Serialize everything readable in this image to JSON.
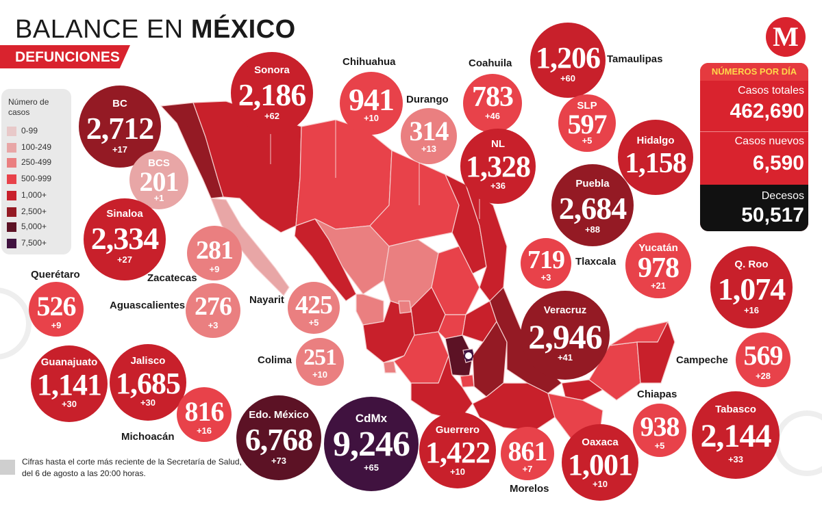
{
  "header": {
    "title_regular": "BALANCE EN",
    "title_bold": "MÉXICO",
    "subtitle": "DEFUNCIONES",
    "logo_letter": "M"
  },
  "legend": {
    "title": "Número de casos",
    "items": [
      {
        "label": "0-99",
        "color": "#e8c9c9"
      },
      {
        "label": "100-249",
        "color": "#e8a6a6"
      },
      {
        "label": "250-499",
        "color": "#ea7f80"
      },
      {
        "label": "500-999",
        "color": "#e8424a"
      },
      {
        "label": "1,000+",
        "color": "#c8202b"
      },
      {
        "label": "2,500+",
        "color": "#941a24"
      },
      {
        "label": "5,000+",
        "color": "#5c1225"
      },
      {
        "label": "7,500+",
        "color": "#40123f"
      }
    ]
  },
  "stats": {
    "header": "NÚMEROS POR DÍA",
    "total_label": "Casos totales",
    "total_value": "462,690",
    "new_label": "Casos nuevos",
    "new_value": "6,590",
    "deaths_label": "Decesos",
    "deaths_value": "50,517"
  },
  "states": [
    {
      "name": "BC",
      "value": "2,712",
      "delta": "+17",
      "color": "#941a24"
    },
    {
      "name": "Sonora",
      "value": "2,186",
      "delta": "+62",
      "color": "#c8202b"
    },
    {
      "name": "BCS",
      "value": "201",
      "delta": "+1",
      "color": "#e8a6a6"
    },
    {
      "name": "Sinaloa",
      "value": "2,334",
      "delta": "+27",
      "color": "#c8202b"
    },
    {
      "name": "Chihuahua",
      "value": "941",
      "delta": "+10",
      "color": "#e8424a"
    },
    {
      "name": "Durango",
      "value": "314",
      "delta": "+13",
      "color": "#ea7f80"
    },
    {
      "name": "Coahuila",
      "value": "783",
      "delta": "+46",
      "color": "#e8424a"
    },
    {
      "name": "NL",
      "value": "1,328",
      "delta": "+36",
      "color": "#c8202b"
    },
    {
      "name": "Tamaulipas",
      "value": "1,206",
      "delta": "+60",
      "color": "#c8202b"
    },
    {
      "name": "SLP",
      "value": "597",
      "delta": "+5",
      "color": "#e8424a"
    },
    {
      "name": "Hidalgo",
      "value": "1,158",
      "delta": "",
      "color": "#c8202b"
    },
    {
      "name": "Puebla",
      "value": "2,684",
      "delta": "+88",
      "color": "#941a24"
    },
    {
      "name": "Zacatecas",
      "value": "281",
      "delta": "+9",
      "color": "#ea7f80"
    },
    {
      "name": "Tlaxcala",
      "value": "719",
      "delta": "+3",
      "color": "#e8424a"
    },
    {
      "name": "Yucatán",
      "value": "978",
      "delta": "+21",
      "color": "#e8424a"
    },
    {
      "name": "Q. Roo",
      "value": "1,074",
      "delta": "+16",
      "color": "#c8202b"
    },
    {
      "name": "Querétaro",
      "value": "526",
      "delta": "+9",
      "color": "#e8424a"
    },
    {
      "name": "Aguascalientes",
      "value": "276",
      "delta": "+3",
      "color": "#ea7f80"
    },
    {
      "name": "Nayarit",
      "value": "425",
      "delta": "+5",
      "color": "#ea7f80"
    },
    {
      "name": "Veracruz",
      "value": "2,946",
      "delta": "+41",
      "color": "#941a24"
    },
    {
      "name": "Colima",
      "value": "251",
      "delta": "+10",
      "color": "#ea7f80"
    },
    {
      "name": "Campeche",
      "value": "569",
      "delta": "+28",
      "color": "#e8424a"
    },
    {
      "name": "Guanajuato",
      "value": "1,141",
      "delta": "+30",
      "color": "#c8202b"
    },
    {
      "name": "Jalisco",
      "value": "1,685",
      "delta": "+30",
      "color": "#c8202b"
    },
    {
      "name": "Michoacán",
      "value": "816",
      "delta": "+16",
      "color": "#e8424a"
    },
    {
      "name": "Edo. México",
      "value": "6,768",
      "delta": "+73",
      "color": "#5c1225"
    },
    {
      "name": "CdMx",
      "value": "9,246",
      "delta": "+65",
      "color": "#40123f"
    },
    {
      "name": "Guerrero",
      "value": "1,422",
      "delta": "+10",
      "color": "#c8202b"
    },
    {
      "name": "Morelos",
      "value": "861",
      "delta": "+7",
      "color": "#e8424a"
    },
    {
      "name": "Oaxaca",
      "value": "1,001",
      "delta": "+10",
      "color": "#c8202b"
    },
    {
      "name": "Chiapas",
      "value": "938",
      "delta": "+5",
      "color": "#e8424a"
    },
    {
      "name": "Tabasco",
      "value": "2,144",
      "delta": "+33",
      "color": "#c8202b"
    }
  ],
  "note": "Cifras hasta el corte más reciente de la Secretaría de Salud, del 6 de agosto a las 20:00 horas."
}
